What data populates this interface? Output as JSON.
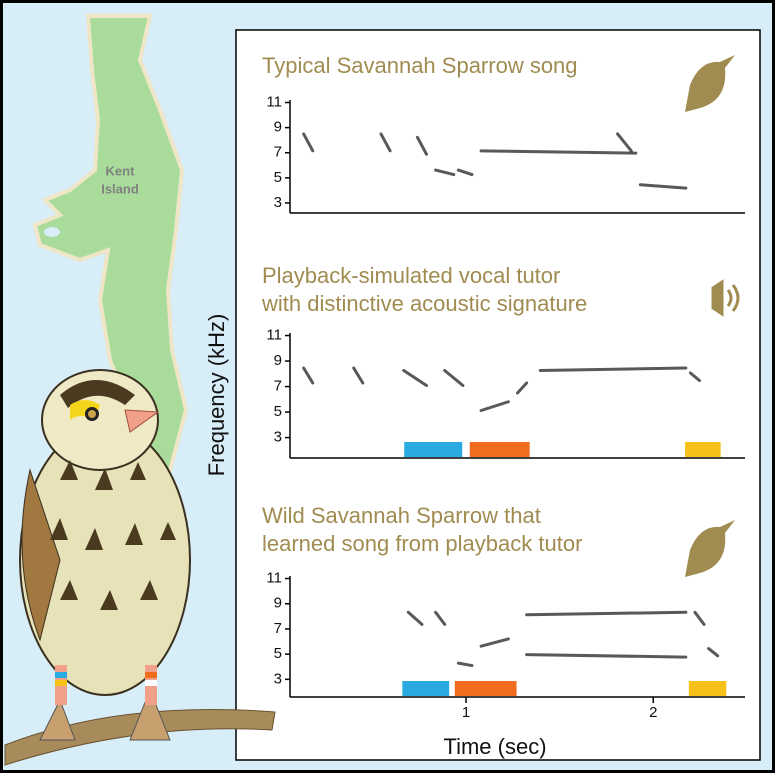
{
  "y_axis_label": "Frequency (kHz)",
  "x_axis_label": "Time (sec)",
  "map_label": [
    "Kent",
    "Island"
  ],
  "xlim": [
    0.06,
    2.49
  ],
  "panels": [
    {
      "title": [
        "Typical Savannah Sparrow song"
      ],
      "ylim": [
        2.2,
        11.2
      ],
      "yticks": [
        3,
        5,
        7,
        9,
        11
      ],
      "highlights": []
    },
    {
      "title": [
        "Playback-simulated vocal tutor",
        "with distinctive acoustic signature"
      ],
      "ylim": [
        1.4,
        11.2
      ],
      "yticks": [
        3,
        5,
        7,
        9,
        11
      ],
      "highlights": [
        {
          "color": "#29abe2",
          "start": 0.67,
          "end": 0.98
        },
        {
          "color": "#f26c1f",
          "start": 1.02,
          "end": 1.34
        },
        {
          "color": "#f7c11a",
          "start": 2.17,
          "end": 2.36
        }
      ]
    },
    {
      "title": [
        "Wild Savannah Sparrow that",
        "learned song from playback tutor"
      ],
      "ylim": [
        1.6,
        11.2
      ],
      "yticks": [
        3,
        5,
        7,
        9,
        11
      ],
      "xticks": [
        1,
        2
      ],
      "highlights": [
        {
          "color": "#29abe2",
          "start": 0.66,
          "end": 0.91
        },
        {
          "color": "#f26c1f",
          "start": 0.94,
          "end": 1.27
        },
        {
          "color": "#f7c11a",
          "start": 2.19,
          "end": 2.39
        }
      ]
    }
  ]
}
